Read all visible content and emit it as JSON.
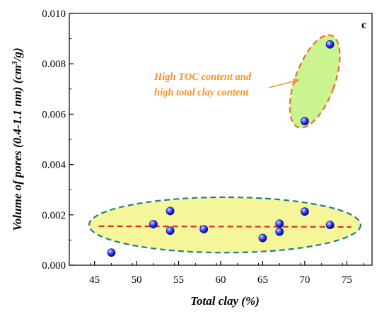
{
  "chart_data": {
    "type": "scatter",
    "panel_label": "c",
    "xlabel": "Total clay (%)",
    "ylabel_main": "Volume of pores (0.4-1.1 nm) (cm",
    "ylabel_sup": "3",
    "ylabel_tail": "/g)",
    "xlim": [
      42,
      78
    ],
    "ylim": [
      0,
      0.01
    ],
    "xticks": [
      45,
      50,
      55,
      60,
      65,
      70,
      75
    ],
    "xtick_labels": [
      "45",
      "50",
      "55",
      "60",
      "65",
      "70",
      "75"
    ],
    "yticks": [
      0,
      0.002,
      0.004,
      0.006,
      0.008,
      0.01
    ],
    "ytick_labels": [
      "0.000",
      "0.002",
      "0.004",
      "0.006",
      "0.008",
      "0.010"
    ],
    "grid": false,
    "points": [
      {
        "x": 47,
        "y": 0.0005
      },
      {
        "x": 52,
        "y": 0.00163
      },
      {
        "x": 54,
        "y": 0.00215
      },
      {
        "x": 54,
        "y": 0.00137
      },
      {
        "x": 58,
        "y": 0.00143
      },
      {
        "x": 65,
        "y": 0.00108
      },
      {
        "x": 67,
        "y": 0.00165
      },
      {
        "x": 67,
        "y": 0.00133
      },
      {
        "x": 70,
        "y": 0.00213
      },
      {
        "x": 73,
        "y": 0.0016
      },
      {
        "x": 70,
        "y": 0.00572
      },
      {
        "x": 73,
        "y": 0.00877
      }
    ],
    "trend_line": {
      "x": [
        45.5,
        75.5
      ],
      "y": [
        0.00155,
        0.00152
      ],
      "color": "#e8262a",
      "style": "dashed"
    },
    "annotation": {
      "lines": [
        "High TOC content  and",
        "high total clay content"
      ],
      "color": "#f39325"
    },
    "colors": {
      "point": "#1c25e0",
      "point_highlight": "#8fa0ff",
      "ellipse_low_fill": "#f5f69a",
      "ellipse_low_stroke": "#1f7f86",
      "ellipse_high_fill": "#c9f48f",
      "ellipse_high_stroke": "#ef6c2b",
      "arrow": "#f39325"
    }
  }
}
